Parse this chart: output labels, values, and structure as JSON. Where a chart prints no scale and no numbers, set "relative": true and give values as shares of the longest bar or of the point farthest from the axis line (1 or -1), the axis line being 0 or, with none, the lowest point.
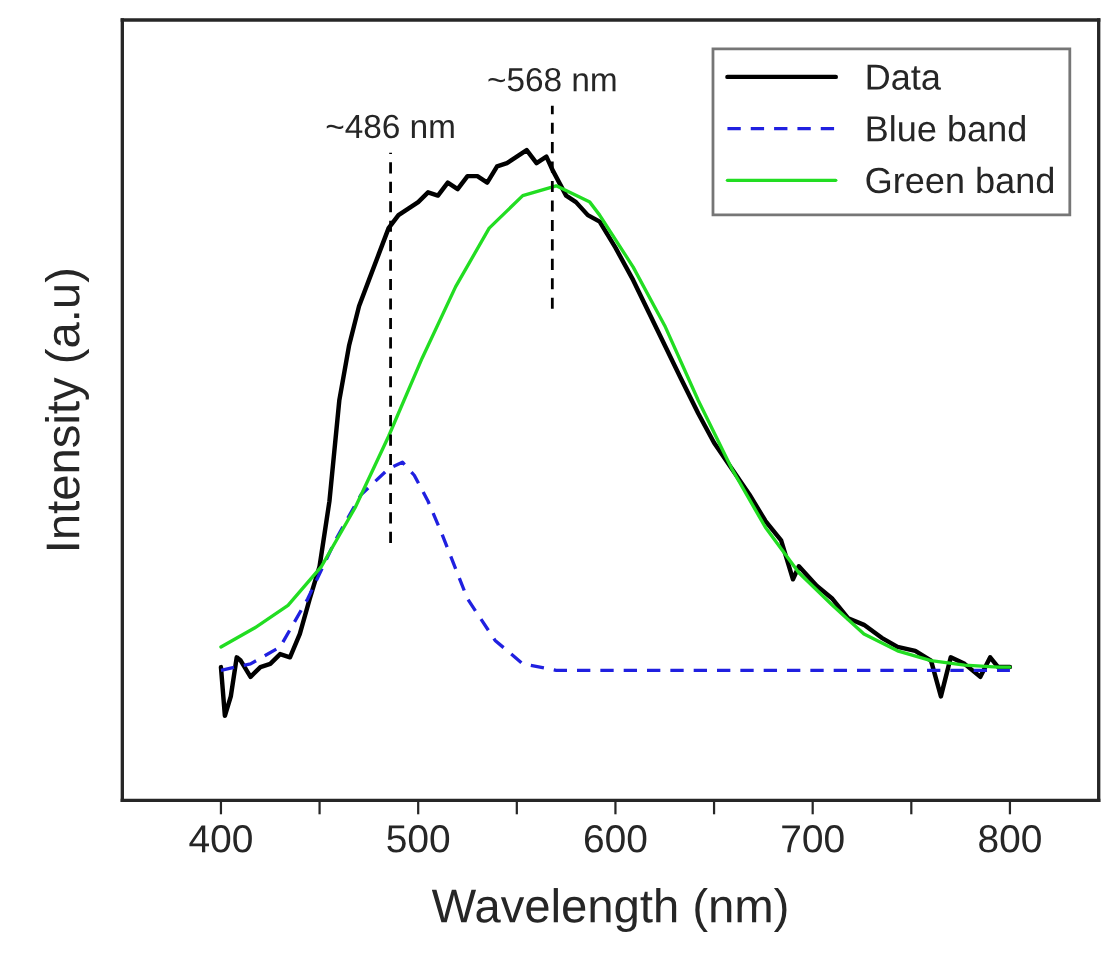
{
  "chart_data": {
    "type": "line",
    "relative": true,
    "xlabel": "Wavelength (nm)",
    "ylabel": "Intensity (a.u)",
    "xlim": [
      350,
      845
    ],
    "xticks": [
      400,
      {
        "value": 450,
        "label": null
      },
      500,
      {
        "value": 550,
        "label": null
      },
      600,
      {
        "value": 650,
        "label": null
      },
      700,
      {
        "value": 750,
        "label": null
      },
      800
    ],
    "legend": "top right",
    "grid": false,
    "ref_lines": [
      {
        "axis": "x",
        "value": 486,
        "label": "~486 nm",
        "color": "#000000",
        "line_style": "dashed"
      },
      {
        "axis": "x",
        "value": 568,
        "label": "~568 nm",
        "color": "#000000",
        "line_style": "dashed"
      }
    ],
    "series": [
      {
        "name": "Data",
        "color": "#000000",
        "line_style": "solid",
        "x": [
          400,
          402,
          405,
          408,
          410,
          415,
          420,
          425,
          430,
          435,
          440,
          445,
          450,
          455,
          460,
          465,
          470,
          475,
          480,
          485,
          490,
          495,
          500,
          505,
          510,
          515,
          520,
          525,
          530,
          535,
          540,
          545,
          550,
          555,
          560,
          565,
          568,
          575,
          580,
          586,
          592,
          600,
          609,
          617,
          625,
          633,
          642,
          650,
          659,
          668,
          676,
          684,
          690,
          693,
          702,
          710,
          718,
          726,
          735,
          743,
          752,
          760,
          765,
          770,
          777,
          785,
          790,
          794,
          800
        ],
        "values": [
          0.205,
          0.13,
          0.16,
          0.22,
          0.215,
          0.19,
          0.205,
          0.21,
          0.225,
          0.22,
          0.256,
          0.31,
          0.36,
          0.46,
          0.615,
          0.7,
          0.76,
          0.8,
          0.84,
          0.88,
          0.9,
          0.91,
          0.92,
          0.935,
          0.93,
          0.95,
          0.94,
          0.96,
          0.96,
          0.95,
          0.975,
          0.98,
          0.99,
          1.0,
          0.98,
          0.99,
          0.97,
          0.93,
          0.92,
          0.9,
          0.89,
          0.85,
          0.8,
          0.75,
          0.7,
          0.65,
          0.595,
          0.55,
          0.51,
          0.47,
          0.43,
          0.4,
          0.34,
          0.36,
          0.33,
          0.31,
          0.28,
          0.27,
          0.25,
          0.236,
          0.23,
          0.215,
          0.16,
          0.22,
          0.21,
          0.19,
          0.22,
          0.205,
          0.205
        ]
      },
      {
        "name": "Blue band",
        "color": "#2020e0",
        "line_style": "dashed",
        "x": [
          400,
          415,
          430,
          444,
          458,
          471,
          485,
          492,
          498,
          505,
          512,
          525,
          539,
          553,
          570,
          600,
          700,
          800
        ],
        "values": [
          0.2,
          0.21,
          0.236,
          0.31,
          0.4,
          0.47,
          0.51,
          0.52,
          0.5,
          0.46,
          0.41,
          0.31,
          0.246,
          0.21,
          0.2,
          0.2,
          0.2,
          0.2
        ]
      },
      {
        "name": "Green band",
        "color": "#22dd22",
        "line_style": "solid",
        "x": [
          400,
          417,
          434,
          451,
          468,
          485,
          502,
          519,
          536,
          553,
          570,
          587,
          592,
          609,
          625,
          642,
          659,
          676,
          693,
          710,
          726,
          743,
          760,
          777,
          794,
          800
        ],
        "values": [
          0.236,
          0.265,
          0.3,
          0.36,
          0.45,
          0.56,
          0.68,
          0.79,
          0.88,
          0.93,
          0.945,
          0.92,
          0.9,
          0.82,
          0.73,
          0.615,
          0.51,
          0.42,
          0.35,
          0.3,
          0.256,
          0.23,
          0.215,
          0.208,
          0.205,
          0.205
        ]
      }
    ]
  }
}
